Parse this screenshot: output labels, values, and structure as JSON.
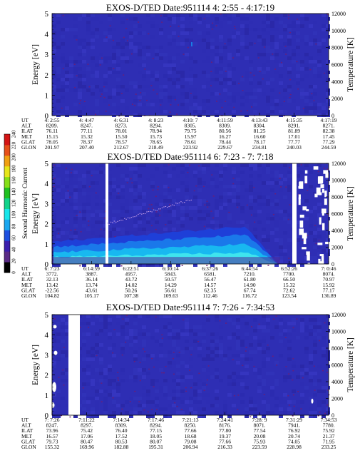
{
  "colorbar": {
    "label": "Second Harmonic Current",
    "ticks": [
      "0",
      "20",
      "40",
      "60",
      "80",
      "100",
      "120",
      "140",
      "160",
      "180",
      "200",
      "220",
      "240"
    ],
    "stops": [
      "#000000",
      "#5a2b86",
      "#3b1fae",
      "#1d4fe0",
      "#1aa7f0",
      "#18e6ea",
      "#12d38a",
      "#20c020",
      "#86df18",
      "#e6e61a",
      "#f0a012",
      "#e6501a",
      "#d41414"
    ]
  },
  "chart_data": [
    {
      "type": "heatmap",
      "title": "EXOS-D/TED   Date:951114   4: 2:55 - 4:17:19",
      "ylabel": "Energy [eV]",
      "y2label": "Temperature [K]",
      "ylim": [
        0,
        5
      ],
      "y2lim": [
        0,
        12000
      ],
      "yticks": [
        "0",
        "1",
        "2",
        "3",
        "4",
        "5"
      ],
      "y2ticks": [
        "0",
        "2000",
        "4000",
        "6000",
        "8000",
        "10000",
        "12000"
      ],
      "background_level": "low",
      "table": {
        "rowlabels": [
          "UT",
          "ALT",
          "ILAT",
          "MLT",
          "GLAT",
          "GLON"
        ],
        "columns": [
          [
            "4: 2:55",
            "8209.",
            "76.11",
            "15.15",
            "78.05",
            "201.97"
          ],
          [
            "4: 4:47",
            "8247.",
            "77.11",
            "15.32",
            "78.37",
            "207.40"
          ],
          [
            "4: 6:31",
            "8273.",
            "78.01",
            "15.50",
            "78.57",
            "212.67"
          ],
          [
            "4: 8:23",
            "8294.",
            "78.94",
            "15.73",
            "78.65",
            "218.49"
          ],
          [
            "4:10: 7",
            "8305.",
            "79.75",
            "15.97",
            "78.61",
            "223.92"
          ],
          [
            "4:11:59",
            "8309.",
            "80.56",
            "16.27",
            "78.44",
            "229.67"
          ],
          [
            "4:13:43",
            "8304.",
            "81.25",
            "16.60",
            "78.17",
            "234.81"
          ],
          [
            "4:15:35",
            "8291.",
            "81.89",
            "17.01",
            "77.77",
            "240.03"
          ],
          [
            "4:17:19",
            "8271.",
            "82.38",
            "17.45",
            "77.29",
            "244.59"
          ]
        ]
      }
    },
    {
      "type": "heatmap",
      "title": "EXOS-D/TED   Date:951114   6: 7:23 - 7: 7:18",
      "ylabel": "Energy [eV]",
      "y2label": "Temperature [K]",
      "ylim": [
        0,
        5
      ],
      "y2lim": [
        0,
        12000
      ],
      "yticks": [
        "0",
        "1",
        "2",
        "3",
        "4",
        "5"
      ],
      "y2ticks": [
        "0",
        "2000",
        "4000",
        "6000",
        "8000",
        "10000",
        "12000"
      ],
      "background_level": "low",
      "table": {
        "rowlabels": [
          "UT",
          "ALT",
          "ILAT",
          "MLT",
          "GLAT",
          "GLON"
        ],
        "columns": [
          [
            "6: 7:23",
            "3772.",
            "32.13",
            "13.42",
            "-22.56",
            "104.82"
          ],
          [
            "6:14:59",
            "3887.",
            "36.14",
            "13.74",
            "43.61",
            "105.17"
          ],
          [
            "6:22:51",
            "4957.",
            "43.72",
            "14.02",
            "50.26",
            "107.38"
          ],
          [
            "6:30:14",
            "5843.",
            "50.57",
            "14.29",
            "56.61",
            "109.63"
          ],
          [
            "6:37:26",
            "6581.",
            "56.47",
            "14.57",
            "62.35",
            "112.46"
          ],
          [
            "6:44:54",
            "7210.",
            "61.80",
            "14.90",
            "67.74",
            "116.72"
          ],
          [
            "6:52:26",
            "7700.",
            "66.50",
            "15.32",
            "72.62",
            "123.54"
          ],
          [
            "7: 0:46",
            "8074.",
            "70.97",
            "15.92",
            "77.17",
            "136.89"
          ]
        ]
      }
    },
    {
      "type": "heatmap",
      "title": "EXOS-D/TED   Date:951114   7: 7:26 - 7:34:53",
      "ylabel": "Energy [eV]",
      "y2label": "Temperature [K]",
      "ylim": [
        0,
        5
      ],
      "y2lim": [
        0,
        12000
      ],
      "yticks": [
        "0",
        "1",
        "2",
        "3",
        "4",
        "5"
      ],
      "y2ticks": [
        "0",
        "2000",
        "4000",
        "6000",
        "8000",
        "10000",
        "12000"
      ],
      "background_level": "low",
      "table": {
        "rowlabels": [
          "UT",
          "ALT",
          "ILAT",
          "MLT",
          "GLAT",
          "GLON"
        ],
        "columns": [
          [
            "7: 7:26",
            "8247.",
            "73.96",
            "16.57",
            "79.73",
            "155.32"
          ],
          [
            "7:11:22",
            "8297.",
            "75.42",
            "17.06",
            "80.47",
            "169.96"
          ],
          [
            "7:14:34",
            "8309.",
            "76.40",
            "17.52",
            "80.53",
            "182.88"
          ],
          [
            "7:17:46",
            "8294.",
            "77.15",
            "18.05",
            "80.07",
            "195.31"
          ],
          [
            "7:21:13",
            "8250.",
            "77.66",
            "18.68",
            "79.08",
            "206.94"
          ],
          [
            "7:24:41",
            "8176.",
            "77.80",
            "19.37",
            "77.66",
            "216.33"
          ],
          [
            "7:28: 9",
            "8071.",
            "77.54",
            "20.08",
            "75.93",
            "223.59"
          ],
          [
            "7:31:29",
            "7941.",
            "76.92",
            "20.74",
            "74.05",
            "228.98"
          ],
          [
            "7:34:53",
            "7780.",
            "75.92",
            "21.37",
            "71.95",
            "233.25"
          ]
        ]
      }
    }
  ]
}
